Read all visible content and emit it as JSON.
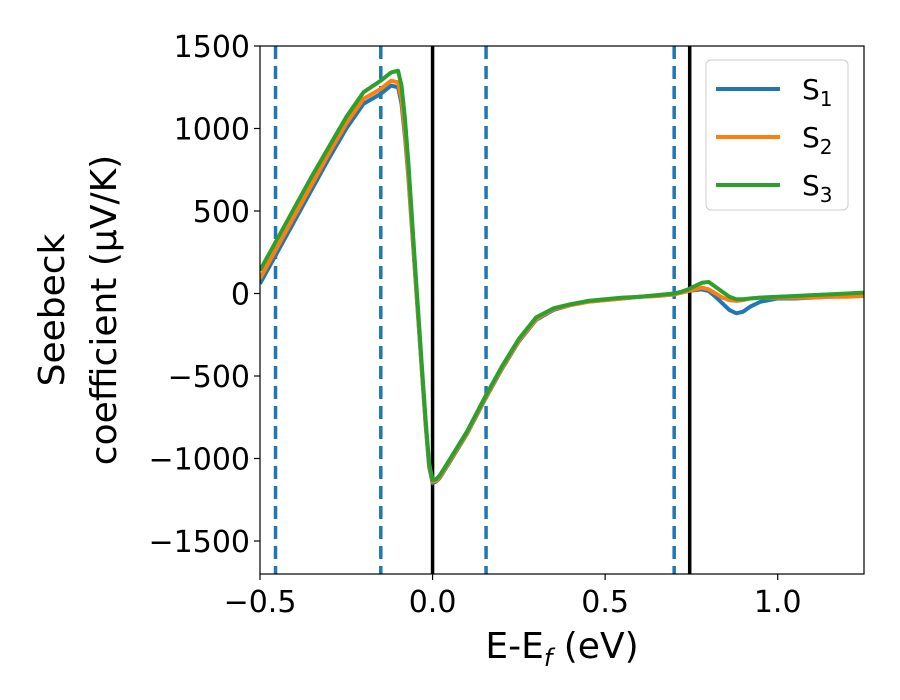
{
  "chart_data": {
    "type": "line",
    "xlabel": "E-E",
    "xlabel_sub": "f",
    "xlabel_unit": " (eV)",
    "ylabel_line1": "Seebeck",
    "ylabel_line2": "coefficient  (μV/K)",
    "xlim": [
      -0.5,
      1.25
    ],
    "ylim": [
      -1700,
      1500
    ],
    "xticks": [
      -0.5,
      0.0,
      0.5,
      1.0
    ],
    "xtick_labels": [
      "−0.5",
      "0.0",
      "0.5",
      "1.0"
    ],
    "yticks": [
      -1500,
      -1000,
      -500,
      0,
      500,
      1000,
      1500
    ],
    "ytick_labels": [
      "−1500",
      "−1000",
      "−500",
      "0",
      "500",
      "1000",
      "1500"
    ],
    "grid": false,
    "legend_position": "top-right",
    "vlines_solid": [
      0.0,
      0.745
    ],
    "vlines_dashed": [
      -0.455,
      -0.15,
      0.155,
      0.7
    ],
    "series": [
      {
        "name": "S",
        "sub": "1",
        "color": "#1f77b4",
        "x": [
          -0.5,
          -0.45,
          -0.4,
          -0.35,
          -0.3,
          -0.25,
          -0.2,
          -0.15,
          -0.12,
          -0.1,
          -0.09,
          -0.08,
          -0.07,
          -0.06,
          -0.05,
          -0.04,
          -0.03,
          -0.02,
          -0.01,
          0.0,
          0.01,
          0.02,
          0.05,
          0.1,
          0.15,
          0.2,
          0.25,
          0.3,
          0.35,
          0.4,
          0.45,
          0.5,
          0.55,
          0.6,
          0.65,
          0.7,
          0.72,
          0.74,
          0.76,
          0.78,
          0.8,
          0.82,
          0.84,
          0.86,
          0.88,
          0.9,
          0.92,
          0.95,
          1.0,
          1.05,
          1.1,
          1.15,
          1.2,
          1.25
        ],
        "y": [
          60,
          250,
          440,
          630,
          820,
          1000,
          1150,
          1210,
          1260,
          1250,
          1150,
          950,
          700,
          400,
          100,
          -200,
          -500,
          -800,
          -1050,
          -1150,
          -1140,
          -1120,
          -1020,
          -850,
          -650,
          -460,
          -290,
          -160,
          -100,
          -70,
          -50,
          -40,
          -30,
          -20,
          -15,
          -5,
          5,
          15,
          20,
          25,
          15,
          -20,
          -60,
          -100,
          -120,
          -110,
          -80,
          -50,
          -30,
          -30,
          -25,
          -20,
          -15,
          -10
        ]
      },
      {
        "name": "S",
        "sub": "2",
        "color": "#ff7f0e",
        "x": [
          -0.5,
          -0.45,
          -0.4,
          -0.35,
          -0.3,
          -0.25,
          -0.2,
          -0.15,
          -0.12,
          -0.1,
          -0.09,
          -0.08,
          -0.07,
          -0.06,
          -0.05,
          -0.04,
          -0.03,
          -0.02,
          -0.01,
          0.0,
          0.01,
          0.02,
          0.05,
          0.1,
          0.15,
          0.2,
          0.25,
          0.3,
          0.35,
          0.4,
          0.45,
          0.5,
          0.55,
          0.6,
          0.65,
          0.7,
          0.72,
          0.74,
          0.76,
          0.78,
          0.8,
          0.82,
          0.84,
          0.86,
          0.88,
          0.9,
          0.92,
          0.95,
          1.0,
          1.05,
          1.1,
          1.15,
          1.2,
          1.25
        ],
        "y": [
          90,
          280,
          470,
          660,
          850,
          1030,
          1180,
          1240,
          1290,
          1280,
          1180,
          980,
          720,
          420,
          110,
          -190,
          -490,
          -790,
          -1040,
          -1140,
          -1135,
          -1115,
          -1015,
          -845,
          -645,
          -455,
          -285,
          -155,
          -95,
          -70,
          -50,
          -40,
          -30,
          -20,
          -15,
          -5,
          5,
          15,
          25,
          35,
          25,
          0,
          -25,
          -40,
          -45,
          -40,
          -30,
          -25,
          -25,
          -25,
          -25,
          -20,
          -20,
          -15
        ]
      },
      {
        "name": "S",
        "sub": "3",
        "color": "#2ca02c",
        "x": [
          -0.5,
          -0.45,
          -0.4,
          -0.35,
          -0.3,
          -0.25,
          -0.2,
          -0.15,
          -0.12,
          -0.1,
          -0.09,
          -0.08,
          -0.07,
          -0.06,
          -0.05,
          -0.04,
          -0.03,
          -0.02,
          -0.01,
          0.0,
          0.01,
          0.02,
          0.05,
          0.1,
          0.15,
          0.2,
          0.25,
          0.3,
          0.35,
          0.4,
          0.45,
          0.5,
          0.55,
          0.6,
          0.65,
          0.7,
          0.72,
          0.74,
          0.76,
          0.78,
          0.8,
          0.82,
          0.84,
          0.86,
          0.88,
          0.9,
          0.92,
          0.95,
          1.0,
          1.05,
          1.1,
          1.15,
          1.2,
          1.25
        ],
        "y": [
          140,
          330,
          520,
          710,
          890,
          1070,
          1220,
          1290,
          1340,
          1350,
          1260,
          1060,
          790,
          470,
          150,
          -160,
          -470,
          -770,
          -1030,
          -1130,
          -1125,
          -1105,
          -1005,
          -835,
          -635,
          -445,
          -275,
          -145,
          -90,
          -65,
          -45,
          -35,
          -25,
          -20,
          -10,
          0,
          10,
          25,
          45,
          65,
          70,
          40,
          10,
          -20,
          -35,
          -35,
          -30,
          -25,
          -20,
          -15,
          -10,
          -5,
          0,
          5
        ]
      }
    ]
  }
}
